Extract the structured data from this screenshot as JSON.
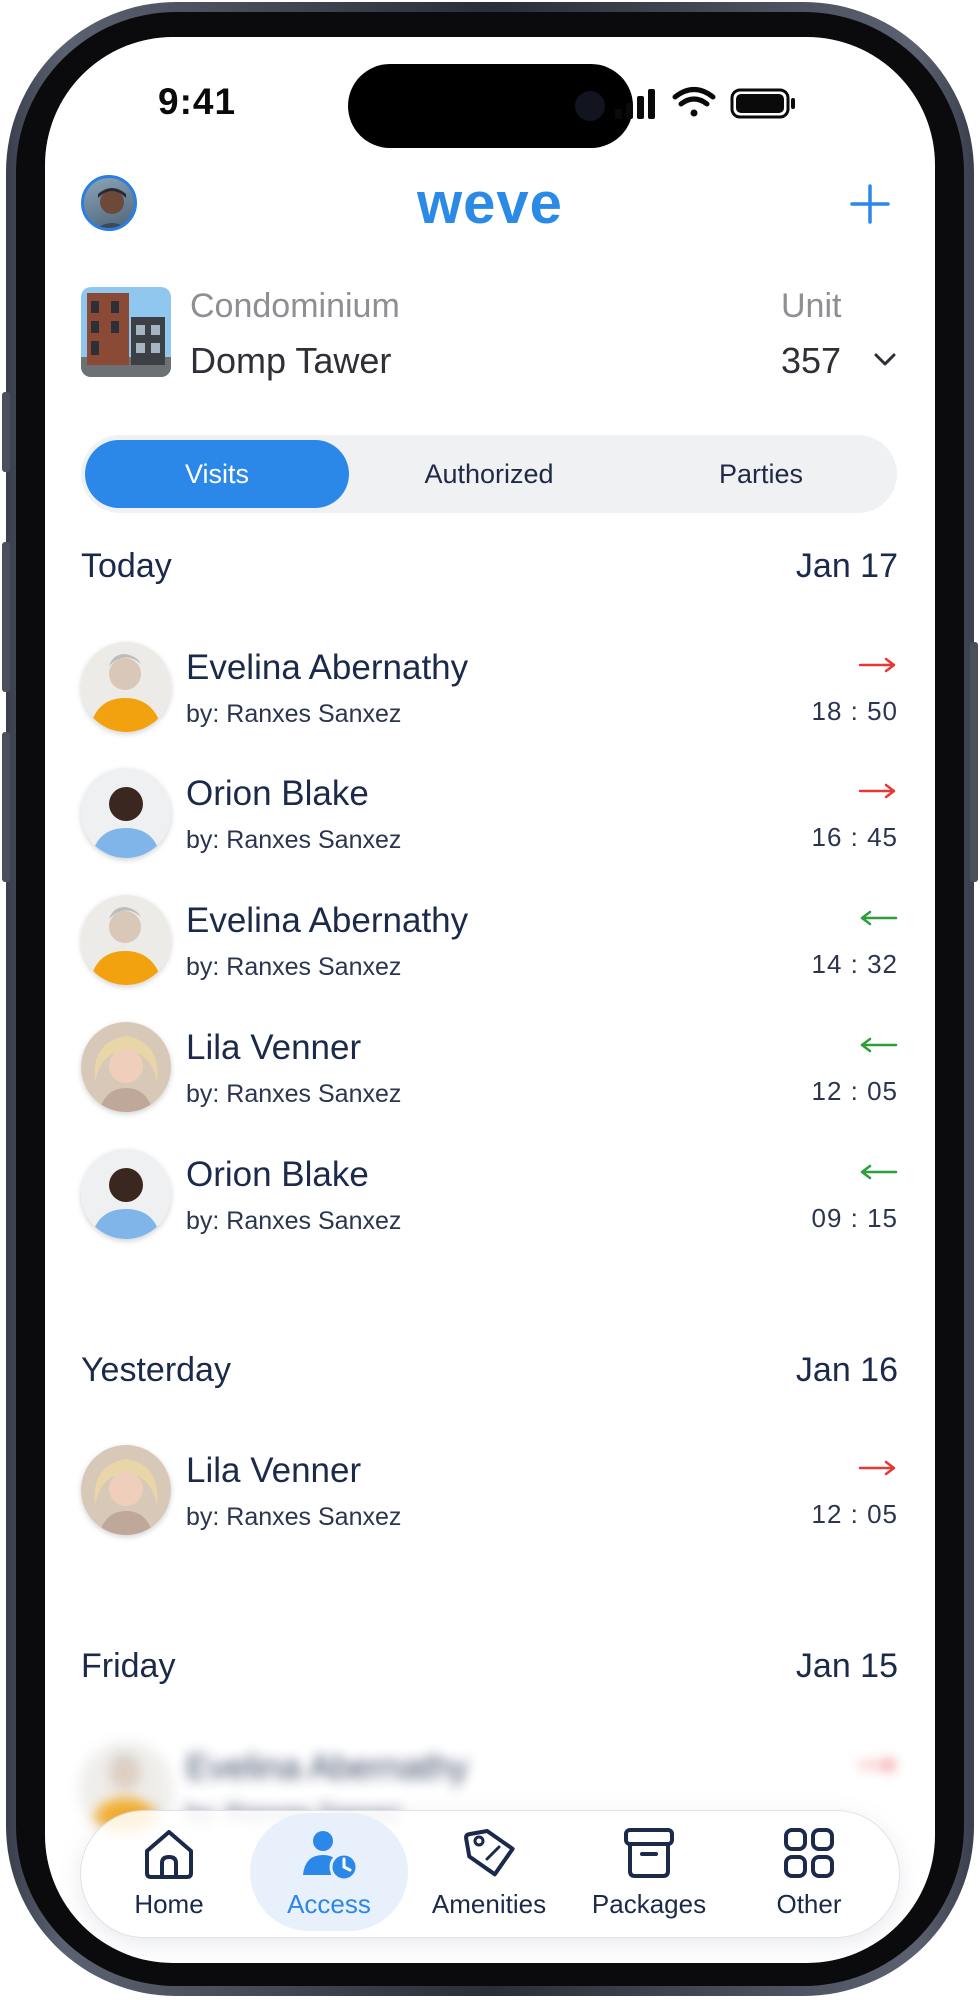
{
  "status_bar": {
    "time": "9:41"
  },
  "header": {
    "logo": "weve",
    "add_icon": "plus-icon"
  },
  "property": {
    "condo_label": "Condominium",
    "condo_name": "Domp Tawer",
    "unit_label": "Unit",
    "unit_number": "357"
  },
  "segments": {
    "visits": "Visits",
    "authorized": "Authorized",
    "parties": "Parties",
    "selected": "Visits"
  },
  "colors": {
    "accent": "#2b88e9",
    "exit_arrow": "#e53935",
    "entry_arrow": "#2e9e3a",
    "text": "#1b2a4a"
  },
  "sections": [
    {
      "title": "Today",
      "date": "Jan 17",
      "items": [
        {
          "name": "Evelina Abernathy",
          "by": "by: Ranxes Sanxez",
          "time": "18 : 50",
          "direction": "out"
        },
        {
          "name": "Orion Blake",
          "by": "by: Ranxes Sanxez",
          "time": "16 : 45",
          "direction": "out"
        },
        {
          "name": "Evelina Abernathy",
          "by": "by: Ranxes Sanxez",
          "time": "14 : 32",
          "direction": "in"
        },
        {
          "name": "Lila Venner",
          "by": "by: Ranxes Sanxez",
          "time": "12 : 05",
          "direction": "in"
        },
        {
          "name": "Orion Blake",
          "by": "by: Ranxes Sanxez",
          "time": "09 : 15",
          "direction": "in"
        }
      ]
    },
    {
      "title": "Yesterday",
      "date": "Jan 16",
      "items": [
        {
          "name": "Lila Venner",
          "by": "by: Ranxes Sanxez",
          "time": "12 : 05",
          "direction": "out"
        }
      ]
    },
    {
      "title": "Friday",
      "date": "Jan 15",
      "items": [
        {
          "name": "Evelina Abernathy",
          "by": "by: Ranxes Sanxez",
          "time": "",
          "direction": "out"
        }
      ]
    }
  ],
  "tabbar": {
    "home": "Home",
    "access": "Access",
    "amenities": "Amenities",
    "packages": "Packages",
    "other": "Other",
    "selected": "Access"
  }
}
